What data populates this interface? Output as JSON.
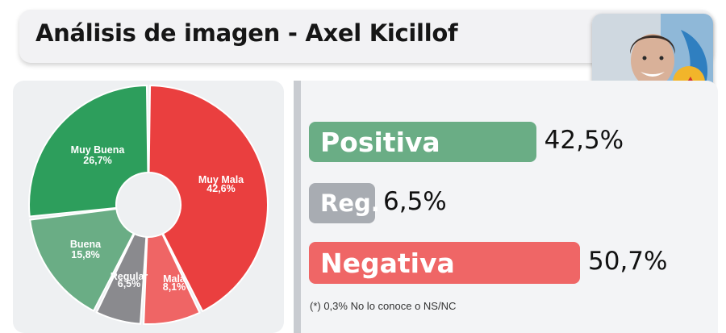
{
  "header": {
    "title": "Análisis de imagen - Axel Kicillof"
  },
  "chart_data": [
    {
      "type": "pie",
      "categories": [
        "Muy Mala",
        "Mala",
        "Regular",
        "Buena",
        "Muy Buena"
      ],
      "values": [
        42.6,
        8.1,
        6.5,
        15.8,
        26.7
      ],
      "labels": [
        "Muy Mala",
        "Mala",
        "Regular",
        "Buena",
        "Muy Buena"
      ],
      "value_labels": [
        "42,6%",
        "8,1%",
        "6,5%",
        "15,8%",
        "26,7%"
      ],
      "colors": [
        "#ea3f3f",
        "#ef6565",
        "#8a8a8e",
        "#6aad85",
        "#2d9e5c"
      ]
    },
    {
      "type": "bar",
      "categories": [
        "Positiva",
        "Reg.",
        "Negativa"
      ],
      "values": [
        42.5,
        6.5,
        50.7
      ],
      "value_labels": [
        "42,5%",
        "6,5%",
        "50,7%"
      ],
      "colors": [
        "#6aad85",
        "#a8acb2",
        "#ef6666"
      ]
    }
  ],
  "footnote": "(*) 0,3% No lo conoce o NS/NC",
  "photo": {
    "icon": "portrait-photo"
  }
}
